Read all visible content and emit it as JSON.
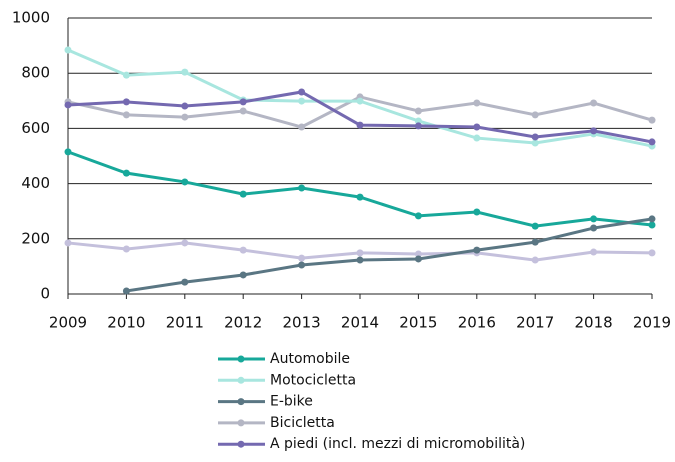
{
  "chart_data": {
    "type": "line",
    "categories": [
      "2009",
      "2010",
      "2011",
      "2012",
      "2013",
      "2014",
      "2015",
      "2016",
      "2017",
      "2018",
      "2019"
    ],
    "ylim": [
      0,
      1000
    ],
    "yticks": [
      0,
      200,
      400,
      600,
      800,
      1000
    ],
    "grid": true,
    "series": [
      {
        "name": "Automobile",
        "color": "#17a89a",
        "values": [
          515,
          438,
          406,
          362,
          384,
          351,
          283,
          297,
          246,
          272,
          250
        ]
      },
      {
        "name": "Motocicletta",
        "color": "#a8e6df",
        "values": [
          884,
          793,
          804,
          703,
          699,
          699,
          627,
          565,
          547,
          580,
          536
        ]
      },
      {
        "name": "E-bike",
        "color": "#5a7683",
        "values": [
          null,
          11,
          43,
          69,
          105,
          123,
          127,
          159,
          188,
          239,
          272
        ]
      },
      {
        "name": "Bicicletta",
        "color": "#b4b6c4",
        "values": [
          696,
          649,
          641,
          663,
          605,
          714,
          663,
          692,
          649,
          692,
          630
        ]
      },
      {
        "name": "A piedi (incl. mezzi di micromobilità)",
        "color": "#7469b0",
        "values": [
          685,
          696,
          681,
          696,
          732,
          612,
          609,
          605,
          569,
          591,
          551
        ]
      },
      {
        "color": "#c4c0dc",
        "values": [
          185,
          163,
          185,
          159,
          130,
          149,
          145,
          149,
          123,
          152,
          149
        ]
      }
    ]
  }
}
